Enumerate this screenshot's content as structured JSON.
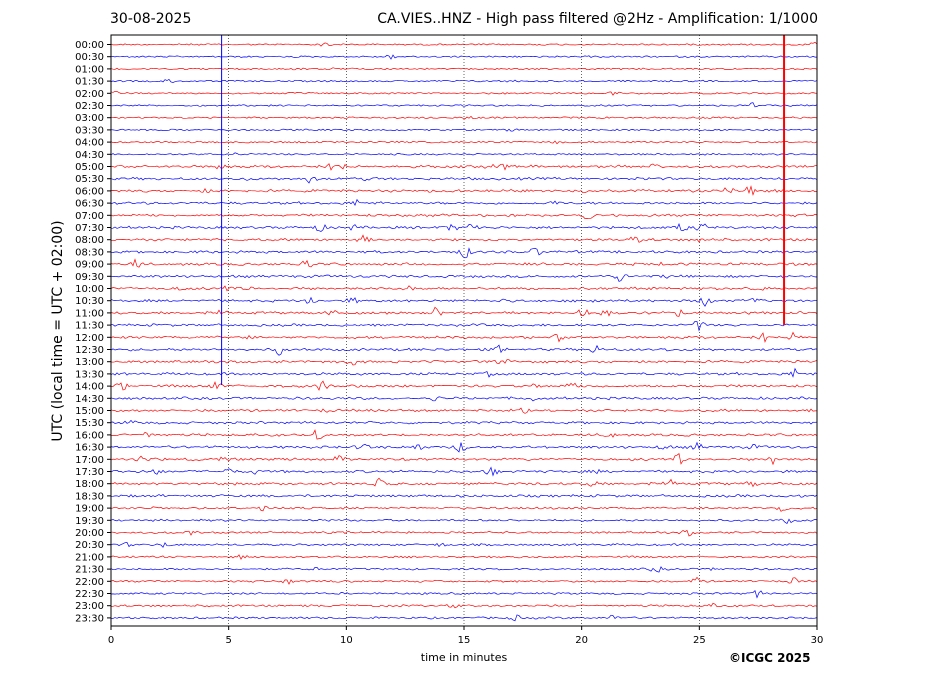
{
  "header": {
    "date": "30-08-2025",
    "title": "CA.VIES..HNZ - High pass filtered @2Hz - Amplification: 1/1000"
  },
  "copyright": "©ICGC 2025",
  "chart_data": {
    "type": "line",
    "title": "CA.VIES..HNZ - High pass filtered @2Hz - Amplification: 1/1000",
    "xlabel": "time in minutes",
    "ylabel": "UTC (local time = UTC + 02:00)",
    "xlim": [
      0,
      30
    ],
    "xticks": [
      "0",
      "5",
      "10",
      "15",
      "20",
      "25",
      "30"
    ],
    "rows": [
      "00:00",
      "00:30",
      "01:00",
      "01:30",
      "02:00",
      "02:30",
      "03:00",
      "03:30",
      "04:00",
      "04:30",
      "05:00",
      "05:30",
      "06:00",
      "06:30",
      "07:00",
      "07:30",
      "08:00",
      "08:30",
      "09:00",
      "09:30",
      "10:00",
      "10:30",
      "11:00",
      "11:30",
      "12:00",
      "12:30",
      "13:00",
      "13:30",
      "14:00",
      "14:30",
      "15:00",
      "15:30",
      "16:00",
      "16:30",
      "17:00",
      "17:30",
      "18:00",
      "18:30",
      "19:00",
      "19:30",
      "20:00",
      "20:30",
      "21:00",
      "21:30",
      "22:00",
      "22:30",
      "23:00",
      "23:30"
    ],
    "colors": [
      "#ff0000",
      "#0000ff"
    ],
    "grid": "vertical dotted at 5-minute intervals",
    "spikes": [
      {
        "row": "00:00",
        "x": 4.7,
        "color": "#0000ff"
      },
      {
        "row": "00:00",
        "x": 28.6,
        "color": "#ff0000"
      }
    ]
  }
}
